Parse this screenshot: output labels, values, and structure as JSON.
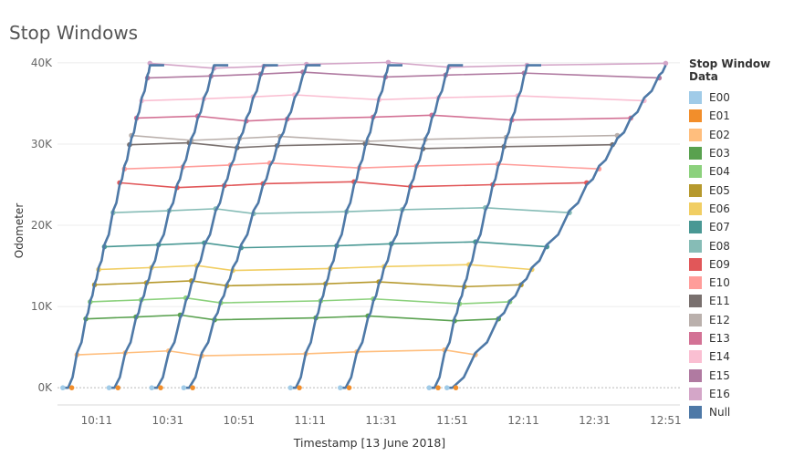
{
  "chart_title": "Stop Windows",
  "colors": {
    "null_line": "#4e79a7",
    "gridline": "#ececec",
    "axis_text": "#666666",
    "zero_line": "#bbbbbb"
  },
  "chart_data": {
    "type": "line",
    "title": "Stop Windows",
    "xlabel": "Timestamp [13 June 2018]",
    "ylabel": "Odometer",
    "x_ticks": [
      "10:11",
      "10:31",
      "10:51",
      "11:11",
      "11:31",
      "11:51",
      "12:11",
      "12:31",
      "12:51"
    ],
    "y_ticks": [
      "0K",
      "10K",
      "20K",
      "30K",
      "40K"
    ],
    "xlim": [
      "10:00",
      "12:55"
    ],
    "ylim": [
      -2000,
      41000
    ],
    "grid": "horizontal",
    "legend_title": "Stop Window Data",
    "legend_position": "right",
    "legend": [
      {
        "name": "E00",
        "color": "#a0cbe8"
      },
      {
        "name": "E01",
        "color": "#f28e2b"
      },
      {
        "name": "E02",
        "color": "#ffbe7d"
      },
      {
        "name": "E03",
        "color": "#59a14f"
      },
      {
        "name": "E04",
        "color": "#8cd17d"
      },
      {
        "name": "E05",
        "color": "#b6992d"
      },
      {
        "name": "E06",
        "color": "#f1ce63"
      },
      {
        "name": "E07",
        "color": "#499894"
      },
      {
        "name": "E08",
        "color": "#86bcb6"
      },
      {
        "name": "E09",
        "color": "#e15759"
      },
      {
        "name": "E10",
        "color": "#ff9d9a"
      },
      {
        "name": "E11",
        "color": "#79706e"
      },
      {
        "name": "E12",
        "color": "#bab0ac"
      },
      {
        "name": "E13",
        "color": "#d37295"
      },
      {
        "name": "E14",
        "color": "#fabfd2"
      },
      {
        "name": "E15",
        "color": "#b07aa1"
      },
      {
        "name": "E16",
        "color": "#d4a6c8"
      },
      {
        "name": "Null",
        "color": "#4e79a7"
      }
    ],
    "window_levels": [
      {
        "name": "E00",
        "odometer": 0
      },
      {
        "name": "E01",
        "odometer": 0
      },
      {
        "name": "E02",
        "odometer": 4300
      },
      {
        "name": "E03",
        "odometer": 8600
      },
      {
        "name": "E04",
        "odometer": 10700
      },
      {
        "name": "E05",
        "odometer": 12800
      },
      {
        "name": "E06",
        "odometer": 14800
      },
      {
        "name": "E07",
        "odometer": 17600
      },
      {
        "name": "E08",
        "odometer": 21800
      },
      {
        "name": "E09",
        "odometer": 25000
      },
      {
        "name": "E10",
        "odometer": 27300
      },
      {
        "name": "E11",
        "odometer": 29800
      },
      {
        "name": "E12",
        "odometer": 30700
      },
      {
        "name": "E13",
        "odometer": 33200
      },
      {
        "name": "E14",
        "odometer": 35700
      },
      {
        "name": "E15",
        "odometer": 38500
      },
      {
        "name": "E16",
        "odometer": 39700
      }
    ],
    "trips": [
      {
        "start": "10:03",
        "end": "10:26"
      },
      {
        "start": "10:16",
        "end": "10:44"
      },
      {
        "start": "10:28",
        "end": "10:58"
      },
      {
        "start": "10:37",
        "end": "11:10"
      },
      {
        "start": "11:07",
        "end": "11:33"
      },
      {
        "start": "11:21",
        "end": "11:50"
      },
      {
        "start": "11:46",
        "end": "12:12"
      },
      {
        "start": "11:51",
        "end": "12:51"
      }
    ]
  }
}
